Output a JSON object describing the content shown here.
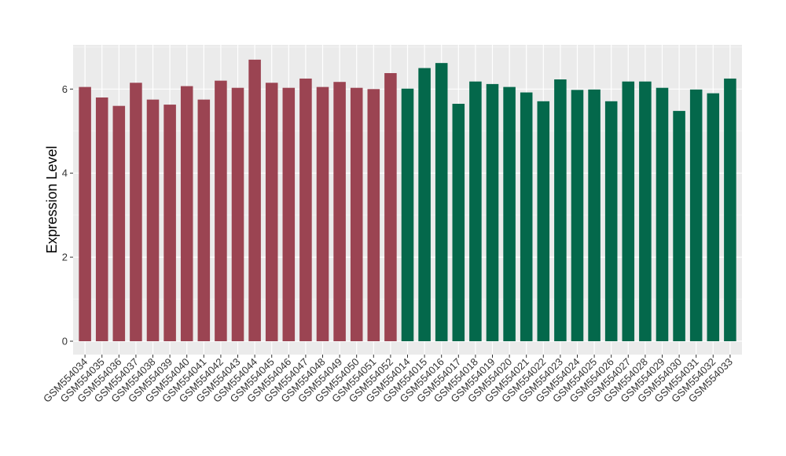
{
  "chart_data": {
    "type": "bar",
    "title": "",
    "xlabel": "",
    "ylabel": "Expression Level",
    "ylim": [
      0,
      7
    ],
    "yticks": [
      0,
      2,
      4,
      6
    ],
    "grid": true,
    "panel_background": "#EBEBEB",
    "colors": {
      "group_1": "#9B4452",
      "group_2": "#04684B"
    },
    "categories": [
      "GSM554034",
      "GSM554035",
      "GSM554036",
      "GSM554037",
      "GSM554038",
      "GSM554039",
      "GSM554040",
      "GSM554041",
      "GSM554042",
      "GSM554043",
      "GSM554044",
      "GSM554045",
      "GSM554046",
      "GSM554047",
      "GSM554048",
      "GSM554049",
      "GSM554050",
      "GSM554051",
      "GSM554052",
      "GSM554014",
      "GSM554015",
      "GSM554016",
      "GSM554017",
      "GSM554018",
      "GSM554019",
      "GSM554020",
      "GSM554021",
      "GSM554022",
      "GSM554023",
      "GSM554024",
      "GSM554025",
      "GSM554026",
      "GSM554027",
      "GSM554028",
      "GSM554029",
      "GSM554030",
      "GSM554031",
      "GSM554032",
      "GSM554033"
    ],
    "values": [
      6.05,
      5.8,
      5.6,
      6.15,
      5.75,
      5.63,
      6.07,
      5.75,
      6.2,
      6.03,
      6.7,
      6.15,
      6.03,
      6.25,
      6.05,
      6.17,
      6.03,
      6.0,
      6.38,
      6.01,
      6.5,
      6.62,
      5.65,
      6.18,
      6.12,
      6.05,
      5.92,
      5.71,
      6.23,
      5.98,
      5.99,
      5.71,
      6.18,
      6.18,
      6.03,
      5.48,
      5.99,
      5.9,
      6.25
    ],
    "groups": [
      1,
      1,
      1,
      1,
      1,
      1,
      1,
      1,
      1,
      1,
      1,
      1,
      1,
      1,
      1,
      1,
      1,
      1,
      1,
      2,
      2,
      2,
      2,
      2,
      2,
      2,
      2,
      2,
      2,
      2,
      2,
      2,
      2,
      2,
      2,
      2,
      2,
      2,
      2
    ]
  }
}
